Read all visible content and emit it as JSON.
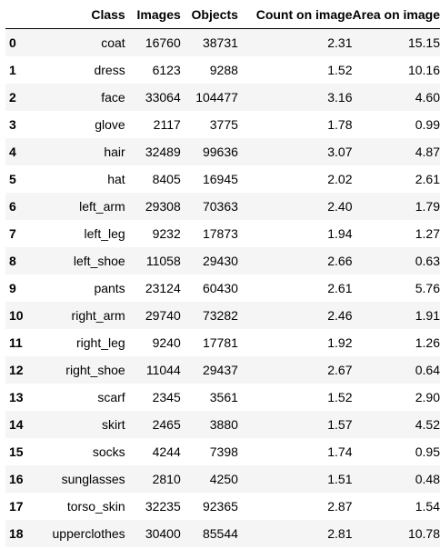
{
  "table": {
    "columns": [
      "",
      "Class",
      "Images",
      "Objects",
      "Count on image",
      "Area on image"
    ],
    "rows": [
      [
        "0",
        "coat",
        "16760",
        "38731",
        "2.31",
        "15.15"
      ],
      [
        "1",
        "dress",
        "6123",
        "9288",
        "1.52",
        "10.16"
      ],
      [
        "2",
        "face",
        "33064",
        "104477",
        "3.16",
        "4.60"
      ],
      [
        "3",
        "glove",
        "2117",
        "3775",
        "1.78",
        "0.99"
      ],
      [
        "4",
        "hair",
        "32489",
        "99636",
        "3.07",
        "4.87"
      ],
      [
        "5",
        "hat",
        "8405",
        "16945",
        "2.02",
        "2.61"
      ],
      [
        "6",
        "left_arm",
        "29308",
        "70363",
        "2.40",
        "1.79"
      ],
      [
        "7",
        "left_leg",
        "9232",
        "17873",
        "1.94",
        "1.27"
      ],
      [
        "8",
        "left_shoe",
        "11058",
        "29430",
        "2.66",
        "0.63"
      ],
      [
        "9",
        "pants",
        "23124",
        "60430",
        "2.61",
        "5.76"
      ],
      [
        "10",
        "right_arm",
        "29740",
        "73282",
        "2.46",
        "1.91"
      ],
      [
        "11",
        "right_leg",
        "9240",
        "17781",
        "1.92",
        "1.26"
      ],
      [
        "12",
        "right_shoe",
        "11044",
        "29437",
        "2.67",
        "0.64"
      ],
      [
        "13",
        "scarf",
        "2345",
        "3561",
        "1.52",
        "2.90"
      ],
      [
        "14",
        "skirt",
        "2465",
        "3880",
        "1.57",
        "4.52"
      ],
      [
        "15",
        "socks",
        "4244",
        "7398",
        "1.74",
        "0.95"
      ],
      [
        "16",
        "sunglasses",
        "2810",
        "4250",
        "1.51",
        "0.48"
      ],
      [
        "17",
        "torso_skin",
        "32235",
        "92365",
        "2.87",
        "1.54"
      ],
      [
        "18",
        "upperclothes",
        "30400",
        "85544",
        "2.81",
        "10.78"
      ]
    ]
  }
}
